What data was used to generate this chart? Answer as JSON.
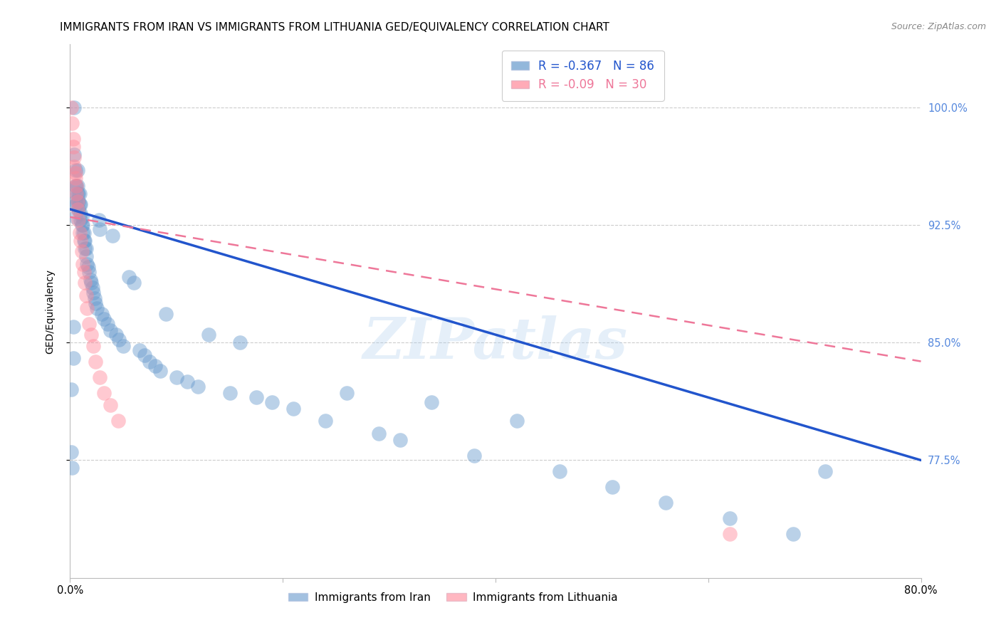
{
  "title": "IMMIGRANTS FROM IRAN VS IMMIGRANTS FROM LITHUANIA GED/EQUIVALENCY CORRELATION CHART",
  "source": "Source: ZipAtlas.com",
  "ylabel": "GED/Equivalency",
  "y_tick_labels": [
    "77.5%",
    "85.0%",
    "92.5%",
    "100.0%"
  ],
  "y_tick_values": [
    0.775,
    0.85,
    0.925,
    1.0
  ],
  "x_lim": [
    0.0,
    0.8
  ],
  "y_lim": [
    0.7,
    1.04
  ],
  "iran_R": -0.367,
  "iran_N": 86,
  "lithuania_R": -0.09,
  "lithuania_N": 30,
  "iran_color": "#6699CC",
  "lithuania_color": "#FF8899",
  "iran_line_color": "#2255CC",
  "lithuania_line_color": "#EE7799",
  "watermark_text": "ZIPatlas",
  "iran_trend_x": [
    0.0,
    0.8
  ],
  "iran_trend_y": [
    0.935,
    0.775
  ],
  "lithuania_trend_x": [
    0.0,
    0.8
  ],
  "lithuania_trend_y": [
    0.93,
    0.838
  ],
  "grid_color": "#CCCCCC",
  "background_color": "#FFFFFF",
  "right_axis_color": "#5588DD",
  "title_fontsize": 11,
  "axis_label_fontsize": 10,
  "tick_fontsize": 10.5,
  "iran_scatter_x": [
    0.001,
    0.001,
    0.002,
    0.003,
    0.003,
    0.004,
    0.004,
    0.005,
    0.005,
    0.005,
    0.005,
    0.006,
    0.006,
    0.006,
    0.007,
    0.007,
    0.007,
    0.007,
    0.008,
    0.008,
    0.008,
    0.009,
    0.009,
    0.01,
    0.01,
    0.01,
    0.011,
    0.011,
    0.012,
    0.012,
    0.013,
    0.013,
    0.014,
    0.014,
    0.015,
    0.015,
    0.016,
    0.017,
    0.018,
    0.019,
    0.02,
    0.021,
    0.022,
    0.023,
    0.024,
    0.025,
    0.027,
    0.028,
    0.03,
    0.032,
    0.035,
    0.038,
    0.04,
    0.043,
    0.046,
    0.05,
    0.055,
    0.06,
    0.065,
    0.07,
    0.075,
    0.08,
    0.085,
    0.09,
    0.1,
    0.11,
    0.12,
    0.13,
    0.15,
    0.16,
    0.175,
    0.19,
    0.21,
    0.24,
    0.26,
    0.29,
    0.31,
    0.34,
    0.38,
    0.42,
    0.46,
    0.51,
    0.56,
    0.62,
    0.68,
    0.71
  ],
  "iran_scatter_y": [
    0.82,
    0.78,
    0.77,
    0.84,
    0.86,
    1.0,
    0.97,
    0.96,
    0.95,
    0.94,
    0.93,
    0.95,
    0.945,
    0.938,
    0.96,
    0.95,
    0.945,
    0.94,
    0.945,
    0.94,
    0.935,
    0.945,
    0.938,
    0.938,
    0.932,
    0.928,
    0.93,
    0.925,
    0.925,
    0.92,
    0.92,
    0.915,
    0.915,
    0.91,
    0.91,
    0.905,
    0.9,
    0.898,
    0.895,
    0.89,
    0.888,
    0.885,
    0.882,
    0.878,
    0.875,
    0.872,
    0.928,
    0.922,
    0.868,
    0.865,
    0.862,
    0.858,
    0.918,
    0.855,
    0.852,
    0.848,
    0.892,
    0.888,
    0.845,
    0.842,
    0.838,
    0.835,
    0.832,
    0.868,
    0.828,
    0.825,
    0.822,
    0.855,
    0.818,
    0.85,
    0.815,
    0.812,
    0.808,
    0.8,
    0.818,
    0.792,
    0.788,
    0.812,
    0.778,
    0.8,
    0.768,
    0.758,
    0.748,
    0.738,
    0.728,
    0.768
  ],
  "lithuania_scatter_x": [
    0.001,
    0.002,
    0.003,
    0.003,
    0.004,
    0.004,
    0.005,
    0.005,
    0.006,
    0.006,
    0.007,
    0.007,
    0.008,
    0.009,
    0.01,
    0.011,
    0.012,
    0.013,
    0.014,
    0.015,
    0.016,
    0.018,
    0.02,
    0.022,
    0.024,
    0.028,
    0.032,
    0.038,
    0.045,
    0.62
  ],
  "lithuania_scatter_y": [
    1.0,
    0.99,
    0.98,
    0.975,
    0.968,
    0.962,
    0.958,
    0.955,
    0.95,
    0.945,
    0.94,
    0.935,
    0.928,
    0.92,
    0.915,
    0.908,
    0.9,
    0.895,
    0.888,
    0.88,
    0.872,
    0.862,
    0.855,
    0.848,
    0.838,
    0.828,
    0.818,
    0.81,
    0.8,
    0.728
  ]
}
